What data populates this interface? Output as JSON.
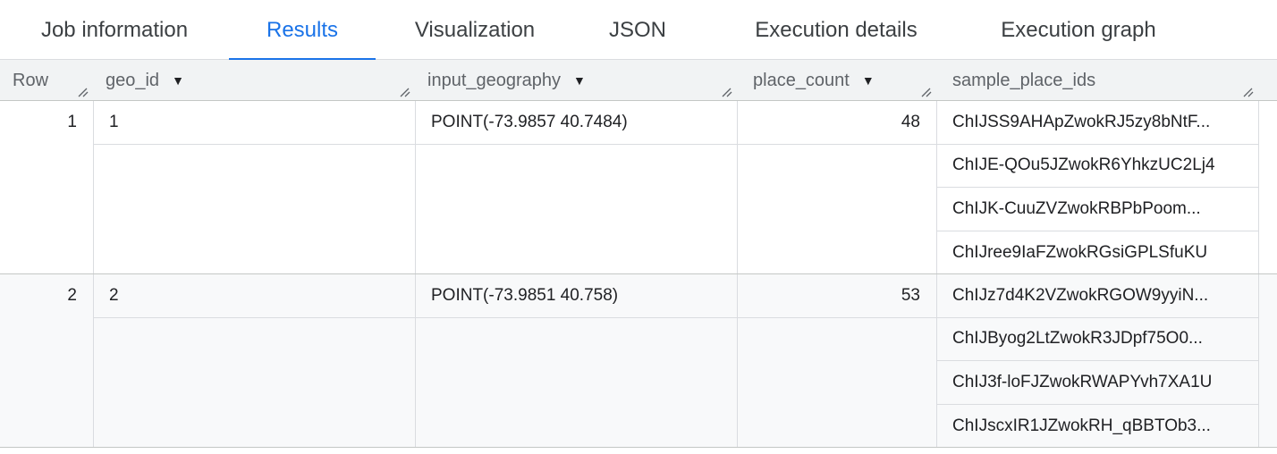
{
  "tabs": [
    {
      "label": "Job information"
    },
    {
      "label": "Results",
      "active": true
    },
    {
      "label": "Visualization"
    },
    {
      "label": "JSON"
    },
    {
      "label": "Execution details"
    },
    {
      "label": "Execution graph"
    }
  ],
  "columns": [
    {
      "label": "Row"
    },
    {
      "label": "geo_id",
      "sortable": true
    },
    {
      "label": "input_geography",
      "sortable": true
    },
    {
      "label": "place_count",
      "sortable": true
    },
    {
      "label": "sample_place_ids"
    }
  ],
  "rows": [
    {
      "row": "1",
      "geo_id": "1",
      "input_geography": "POINT(-73.9857 40.7484)",
      "place_count": "48",
      "sample_place_ids": [
        "ChIJSS9AHApZwokRJ5zy8bNtF...",
        "ChIJE-QOu5JZwokR6YhkzUC2Lj4",
        "ChIJK-CuuZVZwokRBPbPoom...",
        "ChIJree9IaFZwokRGsiGPLSfuKU"
      ]
    },
    {
      "row": "2",
      "geo_id": "2",
      "input_geography": "POINT(-73.9851 40.758)",
      "place_count": "53",
      "sample_place_ids": [
        "ChIJz7d4K2VZwokRGOW9yyiN...",
        "ChIJByog2LtZwokR3JDpf75O0...",
        "ChIJ3f-loFJZwokRWAPYvh7XA1U",
        "ChIJscxIR1JZwokRH_qBBTOb3..."
      ]
    }
  ],
  "colors": {
    "accent": "#1a73e8",
    "header_bg": "#f1f3f4",
    "alt_row_bg": "#f8f9fa"
  }
}
